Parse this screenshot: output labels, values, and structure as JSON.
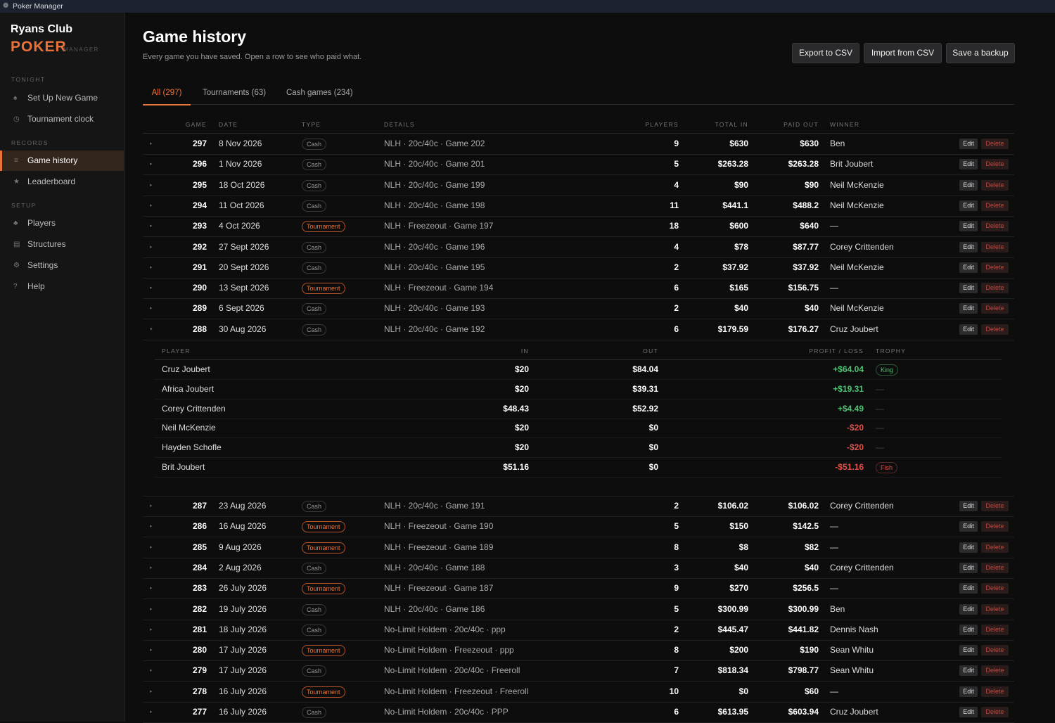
{
  "window_title": "Poker Manager",
  "sidebar": {
    "brand": {
      "club": "Ryans Club",
      "poker": "POKER",
      "manager": "MANAGER"
    },
    "sections": [
      {
        "label": "TONIGHT",
        "items": [
          "Set Up New Game",
          "Tournament clock"
        ]
      },
      {
        "label": "RECORDS",
        "items": [
          "Game history",
          "Leaderboard"
        ]
      },
      {
        "label": "SETUP",
        "items": [
          "Players",
          "Structures",
          "Settings",
          "Help"
        ]
      }
    ]
  },
  "header": {
    "title": "Game history",
    "subtitle": "Every game you have saved. Open a row to see who paid what.",
    "buttons": [
      "Export to CSV",
      "Import from CSV",
      "Save a backup"
    ]
  },
  "tabs": [
    "All (297)",
    "Tournaments (63)",
    "Cash games (234)"
  ],
  "table": {
    "columns": [
      "GAME",
      "DATE",
      "TYPE",
      "DETAILS",
      "PLAYERS",
      "TOTAL IN",
      "PAID OUT",
      "WINNER"
    ],
    "actions": [
      "Edit",
      "Delete"
    ],
    "rows": [
      {
        "game": 297,
        "date": "8 Nov 2026",
        "type": "Cash",
        "details": "NLH · 20c/40c · Game 202",
        "players": 9,
        "total_in": "$630",
        "paid_out": "$630",
        "winner": "Ben"
      },
      {
        "game": 296,
        "date": "1 Nov 2026",
        "type": "Cash",
        "details": "NLH · 20c/40c · Game 201",
        "players": 5,
        "total_in": "$263.28",
        "paid_out": "$263.28",
        "winner": "Brit Joubert"
      },
      {
        "game": 295,
        "date": "18 Oct 2026",
        "type": "Cash",
        "details": "NLH · 20c/40c · Game 199",
        "players": 4,
        "total_in": "$90",
        "paid_out": "$90",
        "winner": "Neil McKenzie"
      },
      {
        "game": 294,
        "date": "11 Oct 2026",
        "type": "Cash",
        "details": "NLH · 20c/40c · Game 198",
        "players": 11,
        "total_in": "$441.1",
        "paid_out": "$488.2",
        "winner": "Neil McKenzie"
      },
      {
        "game": 293,
        "date": "4 Oct 2026",
        "type": "Tournament",
        "details": "NLH · Freezeout · Game 197",
        "players": 18,
        "total_in": "$600",
        "paid_out": "$640",
        "winner": "—"
      },
      {
        "game": 292,
        "date": "27 Sept 2026",
        "type": "Cash",
        "details": "NLH · 20c/40c · Game 196",
        "players": 4,
        "total_in": "$78",
        "paid_out": "$87.77",
        "winner": "Corey Crittenden"
      },
      {
        "game": 291,
        "date": "20 Sept 2026",
        "type": "Cash",
        "details": "NLH · 20c/40c · Game 195",
        "players": 2,
        "total_in": "$37.92",
        "paid_out": "$37.92",
        "winner": "Neil McKenzie"
      },
      {
        "game": 290,
        "date": "13 Sept 2026",
        "type": "Tournament",
        "details": "NLH · Freezeout · Game 194",
        "players": 6,
        "total_in": "$165",
        "paid_out": "$156.75",
        "winner": "—"
      },
      {
        "game": 289,
        "date": "6 Sept 2026",
        "type": "Cash",
        "details": "NLH · 20c/40c · Game 193",
        "players": 2,
        "total_in": "$40",
        "paid_out": "$40",
        "winner": "Neil McKenzie"
      },
      {
        "game": 288,
        "date": "30 Aug 2026",
        "type": "Cash",
        "details": "NLH · 20c/40c · Game 192",
        "players": 6,
        "total_in": "$179.59",
        "paid_out": "$176.27",
        "winner": "Cruz Joubert",
        "expanded": true,
        "breakdown": {
          "columns": [
            "PLAYER",
            "IN",
            "OUT",
            "PROFIT / LOSS",
            "TROPHY"
          ],
          "rows": [
            [
              "Cruz Joubert",
              "$20",
              "$84.04",
              "+$64.04",
              "King"
            ],
            [
              "Africa Joubert",
              "$20",
              "$39.31",
              "+$19.31",
              "—"
            ],
            [
              "Corey Crittenden",
              "$48.43",
              "$52.92",
              "+$4.49",
              "—"
            ],
            [
              "Neil McKenzie",
              "$20",
              "$0",
              "-$20",
              "—"
            ],
            [
              "Hayden Schofle",
              "$20",
              "$0",
              "-$20",
              "—"
            ],
            [
              "Brit Joubert",
              "$51.16",
              "$0",
              "-$51.16",
              "Fish"
            ]
          ]
        }
      },
      {
        "game": 287,
        "date": "23 Aug 2026",
        "type": "Cash",
        "details": "NLH · 20c/40c · Game 191",
        "players": 2,
        "total_in": "$106.02",
        "paid_out": "$106.02",
        "winner": "Corey Crittenden"
      },
      {
        "game": 286,
        "date": "16 Aug 2026",
        "type": "Tournament",
        "details": "NLH · Freezeout · Game 190",
        "players": 5,
        "total_in": "$150",
        "paid_out": "$142.5",
        "winner": "—"
      },
      {
        "game": 285,
        "date": "9 Aug 2026",
        "type": "Tournament",
        "details": "NLH · Freezeout · Game 189",
        "players": 8,
        "total_in": "$8",
        "paid_out": "$82",
        "winner": "—"
      },
      {
        "game": 284,
        "date": "2 Aug 2026",
        "type": "Cash",
        "details": "NLH · 20c/40c · Game 188",
        "players": 3,
        "total_in": "$40",
        "paid_out": "$40",
        "winner": "Corey Crittenden"
      },
      {
        "game": 283,
        "date": "26 July 2026",
        "type": "Tournament",
        "details": "NLH · Freezeout · Game 187",
        "players": 9,
        "total_in": "$270",
        "paid_out": "$256.5",
        "winner": "—"
      },
      {
        "game": 282,
        "date": "19 July 2026",
        "type": "Cash",
        "details": "NLH · 20c/40c · Game 186",
        "players": 5,
        "total_in": "$300.99",
        "paid_out": "$300.99",
        "winner": "Ben"
      },
      {
        "game": 281,
        "date": "18 July 2026",
        "type": "Cash",
        "details": "No-Limit Holdem · 20c/40c · ppp",
        "players": 2,
        "total_in": "$445.47",
        "paid_out": "$441.82",
        "winner": "Dennis Nash"
      },
      {
        "game": 280,
        "date": "17 July 2026",
        "type": "Tournament",
        "details": "No-Limit Holdem · Freezeout · ppp",
        "players": 8,
        "total_in": "$200",
        "paid_out": "$190",
        "winner": "Sean Whitu"
      },
      {
        "game": 279,
        "date": "17 July 2026",
        "type": "Cash",
        "details": "No-Limit Holdem · 20c/40c · Freeroll",
        "players": 7,
        "total_in": "$818.34",
        "paid_out": "$798.77",
        "winner": "Sean Whitu"
      },
      {
        "game": 278,
        "date": "16 July 2026",
        "type": "Tournament",
        "details": "No-Limit Holdem · Freezeout · Freeroll",
        "players": 10,
        "total_in": "$0",
        "paid_out": "$60",
        "winner": "—"
      },
      {
        "game": 277,
        "date": "16 July 2026",
        "type": "Cash",
        "details": "No-Limit Holdem · 20c/40c · PPP",
        "players": 6,
        "total_in": "$613.95",
        "paid_out": "$603.94",
        "winner": "Cruz Joubert"
      }
    ]
  }
}
